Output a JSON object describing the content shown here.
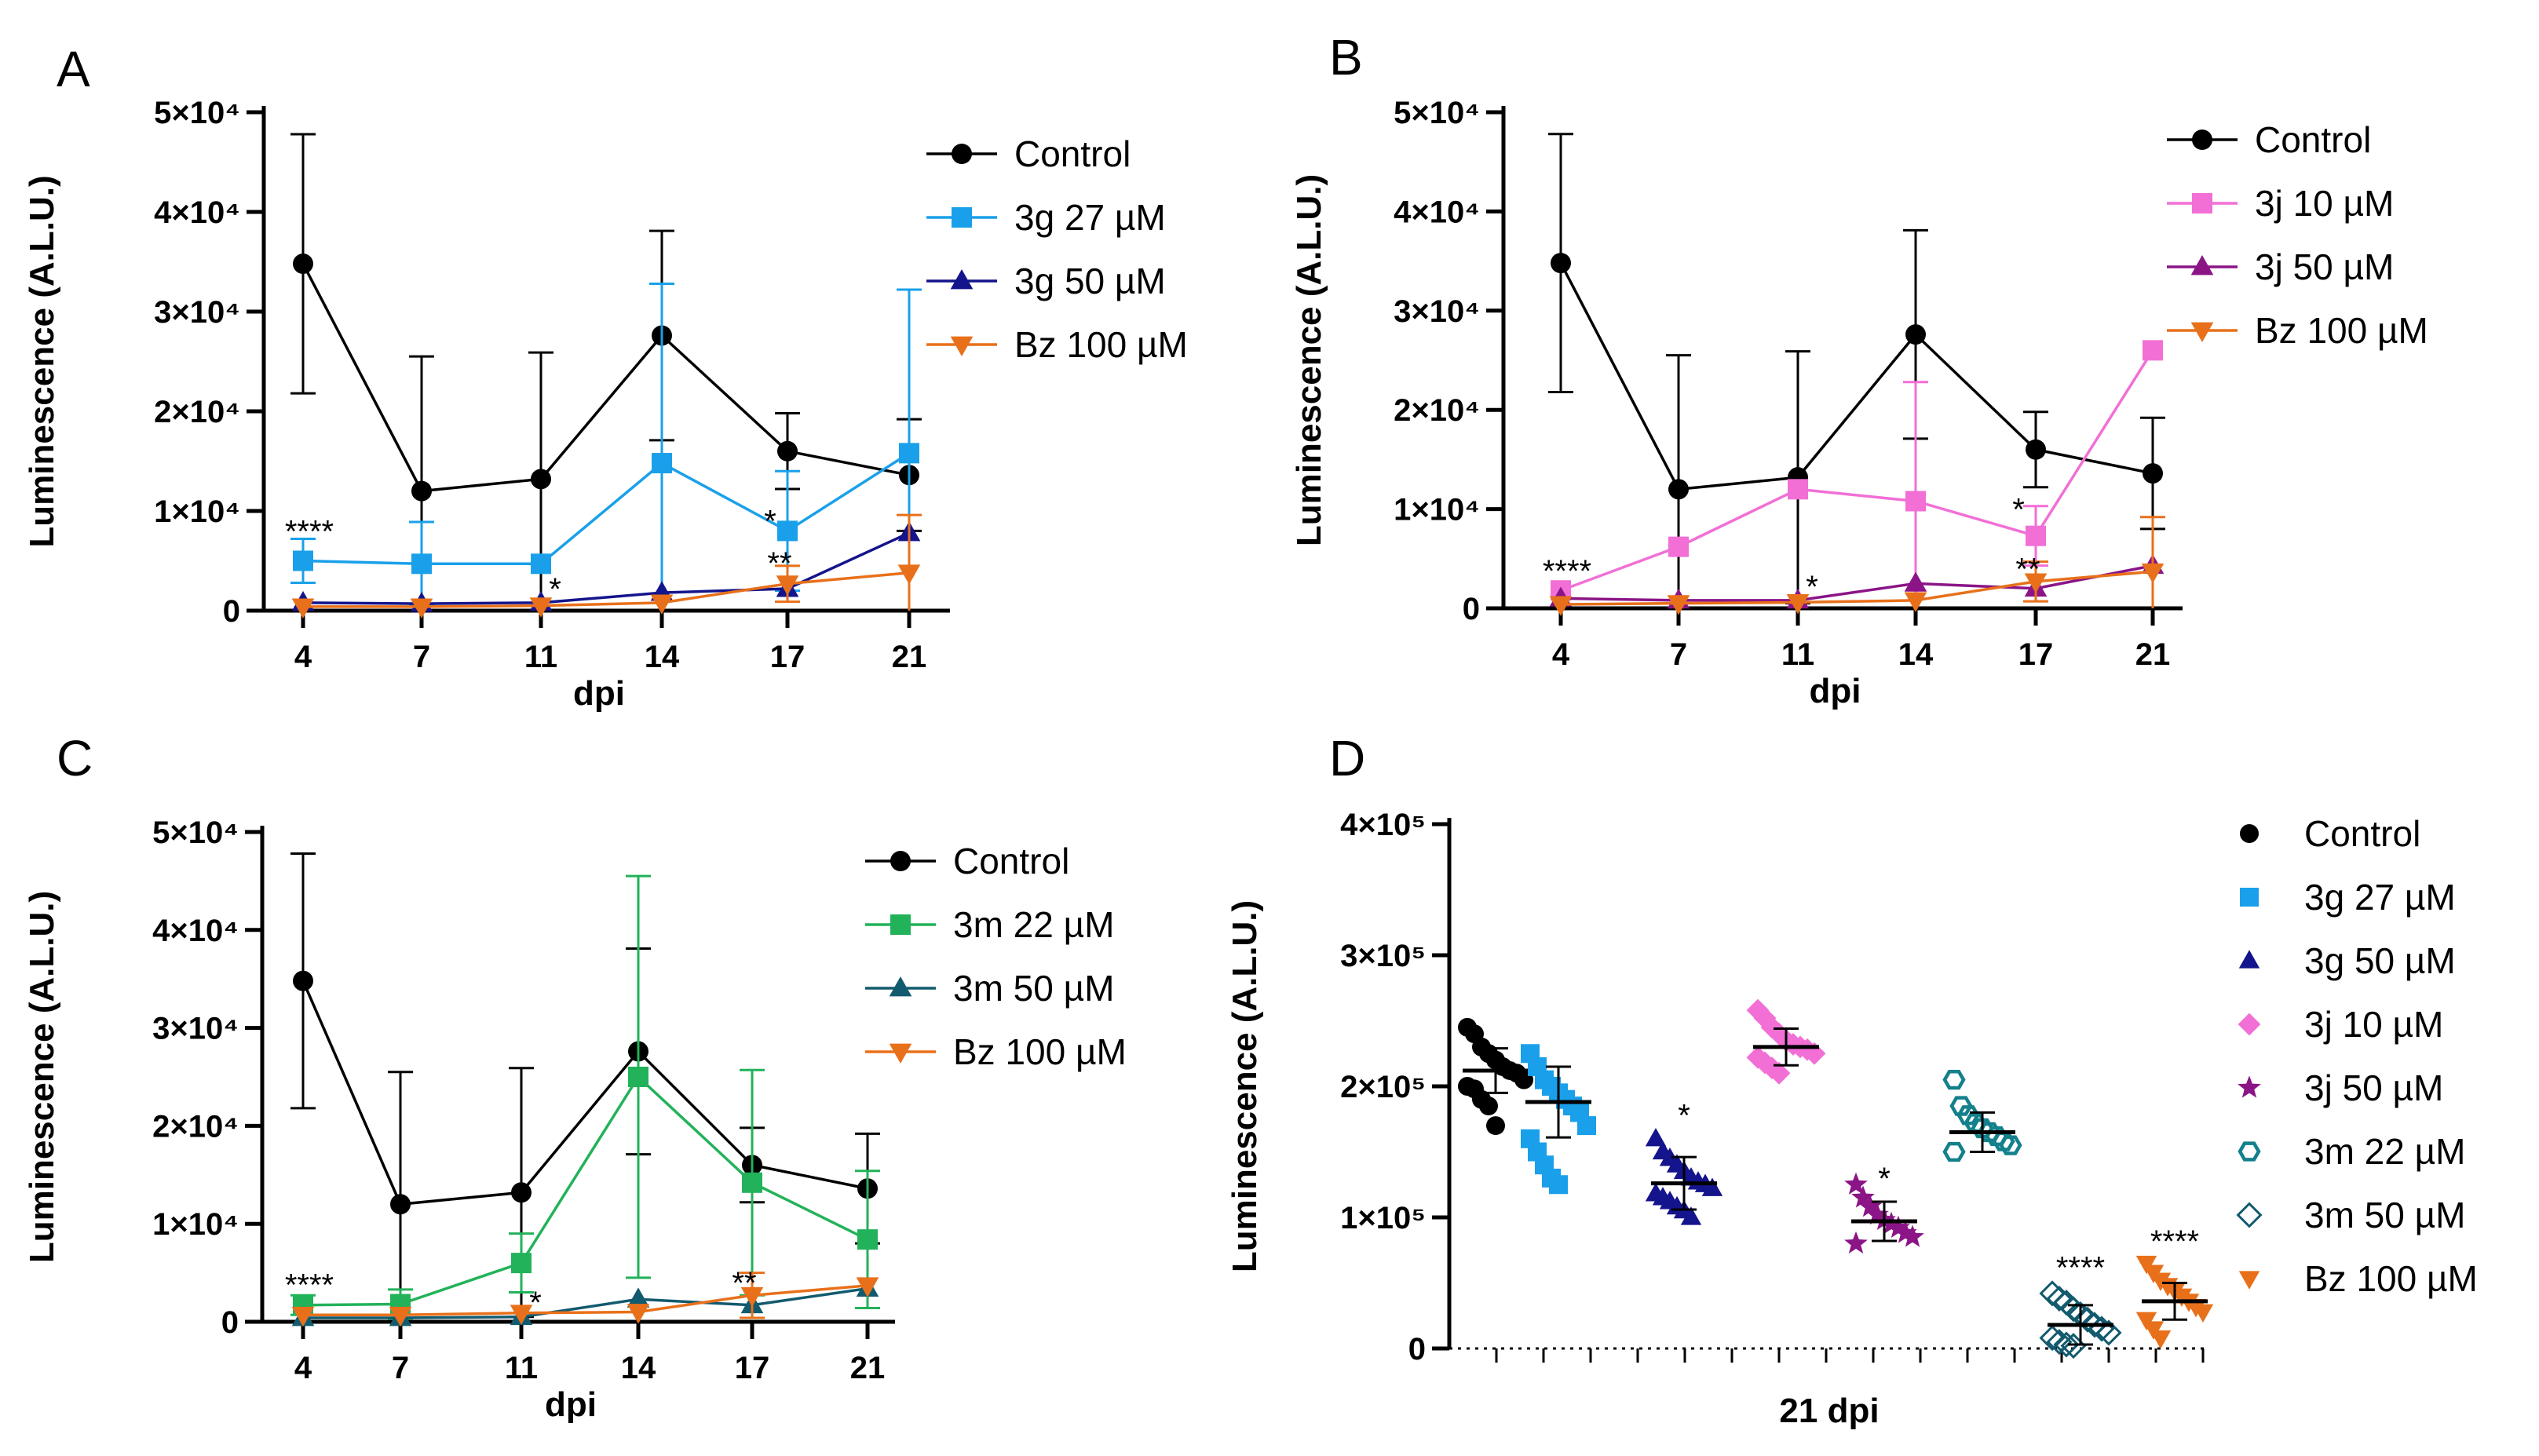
{
  "chart_data": [
    {
      "panel": "A",
      "type": "line",
      "ylabel": "Luminescence (A.L.U.)",
      "xlabel": "dpi",
      "categories": [
        "4",
        "7",
        "11",
        "14",
        "17",
        "21"
      ],
      "ylim": [
        0,
        50000
      ],
      "yticks": [
        "0",
        "1×10⁴",
        "2×10⁴",
        "3×10⁴",
        "4×10⁴",
        "5×10⁴"
      ],
      "ytick_values": [
        0,
        10000,
        20000,
        30000,
        40000,
        50000
      ],
      "series": [
        {
          "name": "Control",
          "color": "#000000",
          "marker": "circle",
          "values": [
            34800,
            12000,
            13200,
            27600,
            16000,
            13600
          ],
          "errors": [
            13000,
            13500,
            12700,
            10500,
            3800,
            5600
          ]
        },
        {
          "name": "3g 27 µM",
          "color": "#1aa0ea",
          "marker": "square",
          "values": [
            5000,
            4700,
            4700,
            14800,
            8000,
            15800
          ],
          "errors": [
            2200,
            4200,
            0,
            18000,
            6000,
            16400
          ]
        },
        {
          "name": "3g 50 µM",
          "color": "#14148c",
          "marker": "triangle-up",
          "values": [
            800,
            700,
            800,
            1800,
            2200,
            7800
          ],
          "errors": [
            0,
            0,
            0,
            0,
            0,
            0
          ]
        },
        {
          "name": "Bz 100 µM",
          "color": "#e8701a",
          "marker": "triangle-down",
          "values": [
            400,
            400,
            500,
            800,
            2700,
            3800
          ],
          "errors": [
            0,
            0,
            0,
            0,
            1800,
            5800
          ]
        }
      ],
      "annotations": [
        {
          "text": "****",
          "x": "4",
          "y": 8000
        },
        {
          "text": "*",
          "x": "11",
          "y": 2200
        },
        {
          "text": "*",
          "x": "17",
          "y": 9000
        },
        {
          "text": "**",
          "x": "17",
          "y": 4800
        }
      ]
    },
    {
      "panel": "B",
      "type": "line",
      "ylabel": "Luminescence (A.L.U.)",
      "xlabel": "dpi",
      "categories": [
        "4",
        "7",
        "11",
        "14",
        "17",
        "21"
      ],
      "ylim": [
        0,
        50000
      ],
      "yticks": [
        "0",
        "1×10⁴",
        "2×10⁴",
        "3×10⁴",
        "4×10⁴",
        "5×10⁴"
      ],
      "ytick_values": [
        0,
        10000,
        20000,
        30000,
        40000,
        50000
      ],
      "series": [
        {
          "name": "Control",
          "color": "#000000",
          "marker": "circle",
          "values": [
            34800,
            12000,
            13200,
            27600,
            16000,
            13600
          ],
          "errors": [
            13000,
            13500,
            12700,
            10500,
            3800,
            5600
          ]
        },
        {
          "name": "3j 10 µM",
          "color": "#f26fd6",
          "marker": "square",
          "values": [
            1800,
            6200,
            12000,
            10800,
            7300,
            26000
          ],
          "errors": [
            0,
            0,
            0,
            12000,
            3000,
            0
          ]
        },
        {
          "name": "3j 50 µM",
          "color": "#8b1487",
          "marker": "triangle-up",
          "values": [
            1000,
            800,
            800,
            2500,
            2000,
            4300
          ],
          "errors": [
            0,
            0,
            0,
            0,
            0,
            0
          ]
        },
        {
          "name": "Bz 100 µM",
          "color": "#e8701a",
          "marker": "triangle-down",
          "values": [
            400,
            500,
            600,
            800,
            2700,
            3700
          ],
          "errors": [
            0,
            0,
            0,
            0,
            2000,
            5500
          ]
        }
      ],
      "annotations": [
        {
          "text": "****",
          "x": "4",
          "y": 3800
        },
        {
          "text": "*",
          "x": "11",
          "y": 2200
        },
        {
          "text": "*",
          "x": "17",
          "y": 10000
        },
        {
          "text": "**",
          "x": "17",
          "y": 4000
        }
      ]
    },
    {
      "panel": "C",
      "type": "line",
      "ylabel": "Luminescence (A.L.U.)",
      "xlabel": "dpi",
      "categories": [
        "4",
        "7",
        "11",
        "14",
        "17",
        "21"
      ],
      "ylim": [
        0,
        50000
      ],
      "yticks": [
        "0",
        "1×10⁴",
        "2×10⁴",
        "3×10⁴",
        "4×10⁴",
        "5×10⁴"
      ],
      "ytick_values": [
        0,
        10000,
        20000,
        30000,
        40000,
        50000
      ],
      "series": [
        {
          "name": "Control",
          "color": "#000000",
          "marker": "circle",
          "values": [
            34800,
            12000,
            13200,
            27600,
            16000,
            13600
          ],
          "errors": [
            13000,
            13500,
            12700,
            10500,
            3800,
            5600
          ]
        },
        {
          "name": "3m 22 µM",
          "color": "#22b25a",
          "marker": "square",
          "values": [
            1700,
            1800,
            6000,
            25000,
            14200,
            8400
          ],
          "errors": [
            1000,
            1500,
            3000,
            20500,
            11500,
            7000
          ]
        },
        {
          "name": "3m 50 µM",
          "color": "#125a6e",
          "marker": "triangle-up",
          "values": [
            400,
            400,
            500,
            2300,
            1700,
            3400
          ],
          "errors": [
            0,
            0,
            0,
            0,
            0,
            0
          ]
        },
        {
          "name": "Bz 100 µM",
          "color": "#e8701a",
          "marker": "triangle-down",
          "values": [
            700,
            700,
            900,
            1000,
            2700,
            3700
          ],
          "errors": [
            0,
            0,
            0,
            0,
            2300,
            0
          ]
        }
      ],
      "annotations": [
        {
          "text": "****",
          "x": "4",
          "y": 3800
        },
        {
          "text": "*",
          "x": "11",
          "y": 2000
        },
        {
          "text": "**",
          "x": "17",
          "y": 4000
        }
      ]
    },
    {
      "panel": "D",
      "type": "scatter",
      "ylabel": "Luminescence (A.L.U.)",
      "xlabel": "21 dpi",
      "ylim": [
        0,
        400000
      ],
      "yticks": [
        "0",
        "1×10⁵",
        "2×10⁵",
        "3×10⁵",
        "4×10⁵"
      ],
      "ytick_values": [
        0,
        100000,
        200000,
        300000,
        400000
      ],
      "groups": [
        {
          "name": "Control",
          "color": "#000000",
          "marker": "circle",
          "mean": 212000,
          "sd": 17000,
          "points": [
            245000,
            240000,
            230000,
            225000,
            220000,
            215000,
            212000,
            210000,
            205000,
            200000,
            198000,
            190000,
            185000,
            170000
          ]
        },
        {
          "name": "3g 27 µM",
          "color": "#1aa0ea",
          "marker": "square",
          "mean": 188000,
          "sd": 27000,
          "points": [
            225000,
            215000,
            205000,
            200000,
            195000,
            190000,
            185000,
            180000,
            170000,
            160000,
            150000,
            140000,
            130000,
            125000
          ]
        },
        {
          "name": "3g 50 µM",
          "color": "#14148c",
          "marker": "triangle-up",
          "mean": 126000,
          "sd": 20000,
          "points": [
            160000,
            150000,
            145000,
            140000,
            135000,
            130000,
            127000,
            125000,
            122000,
            118000,
            115000,
            112000,
            108000,
            105000,
            100000
          ]
        },
        {
          "name": "3j 10 µM",
          "color": "#f26fd6",
          "marker": "diamond",
          "mean": 230000,
          "sd": 14000,
          "points": [
            258000,
            252000,
            245000,
            240000,
            235000,
            232000,
            230000,
            228000,
            225000,
            222000,
            218000,
            214000,
            210000
          ]
        },
        {
          "name": "3j 50 µM",
          "color": "#8b1487",
          "marker": "star",
          "mean": 97000,
          "sd": 15000,
          "points": [
            125000,
            115000,
            108000,
            102000,
            98000,
            95000,
            92000,
            88000,
            85000,
            80000
          ]
        },
        {
          "name": "3m 22 µM",
          "color": "#14808c",
          "marker": "hexagon-open",
          "mean": 165000,
          "sd": 15000,
          "points": [
            205000,
            185000,
            178000,
            172000,
            168000,
            165000,
            162000,
            158000,
            155000,
            150000
          ]
        },
        {
          "name": "3m 50 µM",
          "color": "#125a6e",
          "marker": "diamond-open",
          "mean": 18000,
          "sd": 15000,
          "points": [
            42000,
            38000,
            35000,
            30000,
            26000,
            22000,
            18000,
            15000,
            12000,
            8000,
            5000,
            3000,
            2000
          ]
        },
        {
          "name": "Bz 100 µM",
          "color": "#e8701a",
          "marker": "triangle-down",
          "mean": 36000,
          "sd": 14000,
          "points": [
            65000,
            58000,
            52000,
            48000,
            44000,
            40000,
            36000,
            32000,
            28000,
            22000,
            15000,
            8000
          ]
        }
      ],
      "annotations": [
        {
          "text": "*",
          "group": "3g 50 µM",
          "y": 178000
        },
        {
          "text": "*",
          "group": "3j 50 µM",
          "y": 130000
        },
        {
          "text": "****",
          "group": "3m 50 µM",
          "y": 62000
        },
        {
          "text": "****",
          "group": "Bz 100 µM",
          "y": 82000
        }
      ]
    }
  ]
}
